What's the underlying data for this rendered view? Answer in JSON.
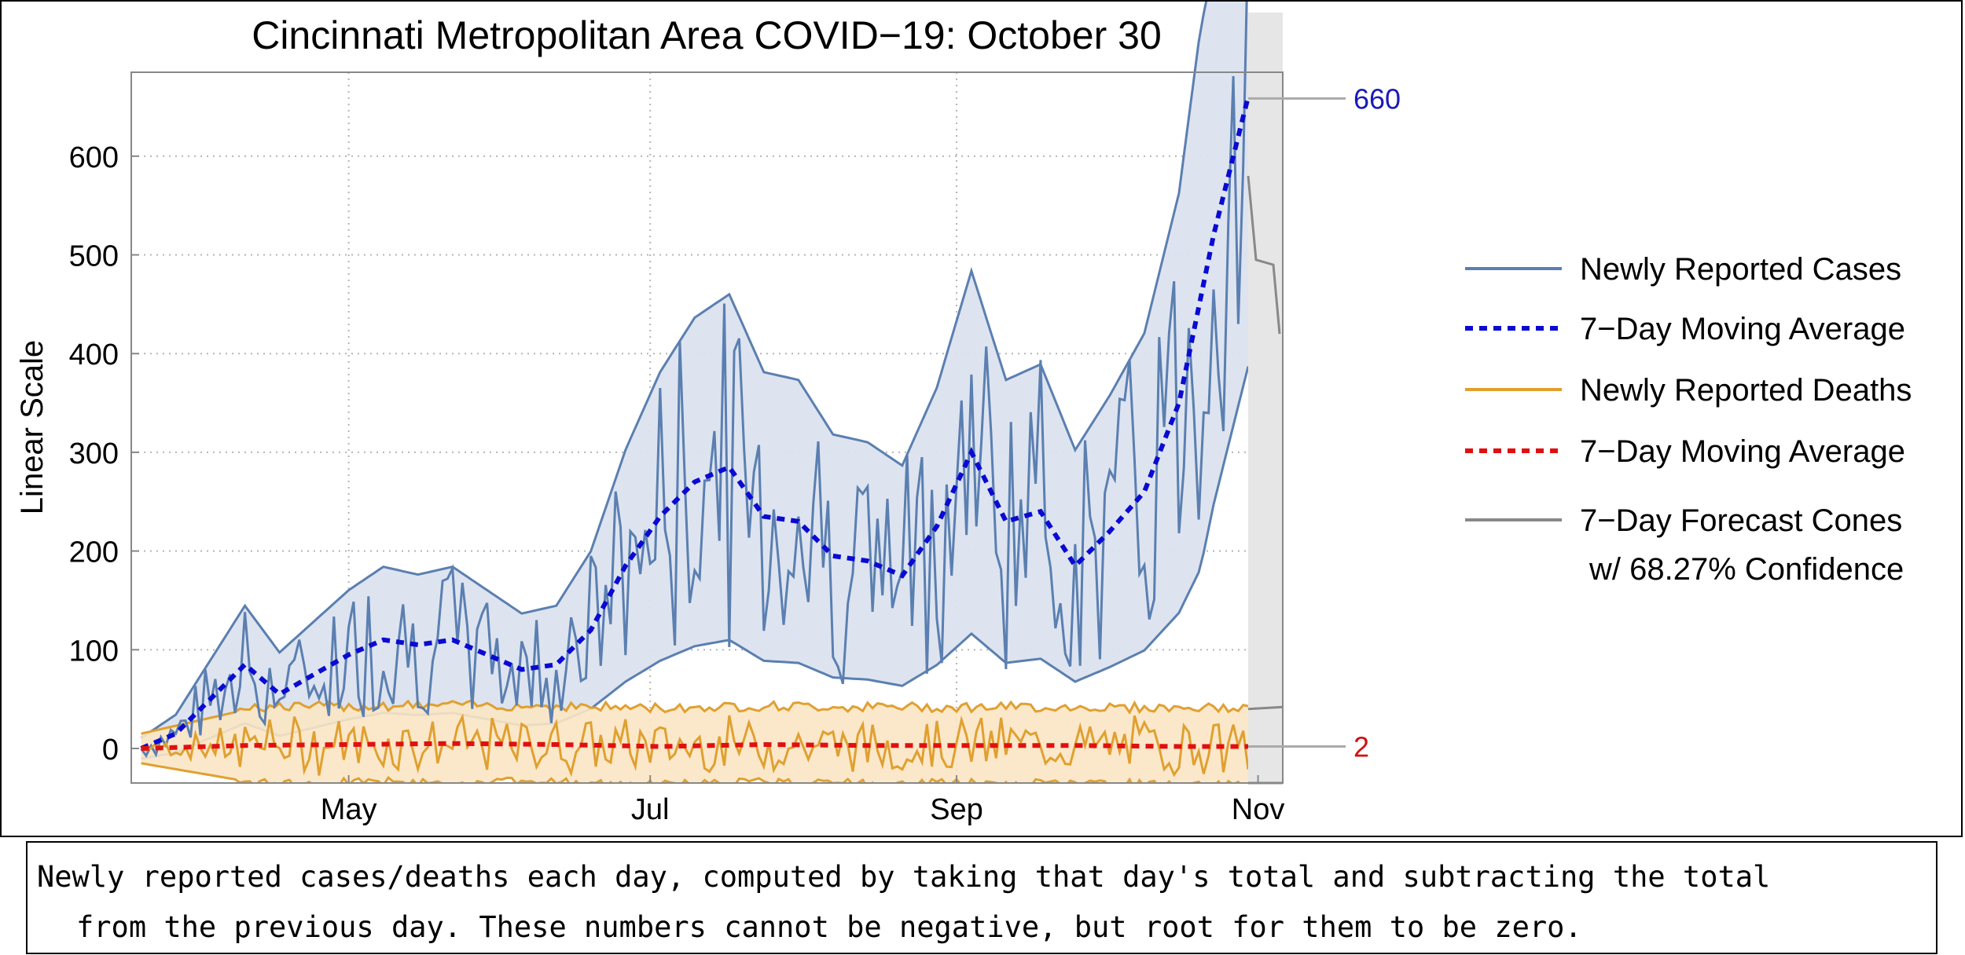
{
  "chart_data": {
    "type": "line",
    "title": "Cincinnati Metropolitan Area COVID−19: October 30",
    "ylabel": "Linear Scale",
    "xlabel": "",
    "ylim": [
      -35,
      685
    ],
    "xlim": [
      "2020-03-18",
      "2020-11-06"
    ],
    "grid": true,
    "legend_position": "right",
    "yticks": [
      0,
      100,
      200,
      300,
      400,
      500,
      600
    ],
    "yticklabels": [
      "0",
      "100",
      "200",
      "300",
      "400",
      "500",
      "600"
    ],
    "xticks": [
      "2020-05-01",
      "2020-07-01",
      "2020-09-01",
      "2020-11-01"
    ],
    "xticklabels": [
      "May",
      "Jul",
      "Sep",
      "Nov"
    ],
    "forecast_start": "2020-10-30",
    "annotations": [
      {
        "text": "660",
        "value": 660,
        "color": "#1a1ab8"
      },
      {
        "text": "2",
        "value": 2,
        "color": "#d01010"
      }
    ],
    "legend": [
      "Newly Reported Cases",
      "7−Day Moving Average",
      "Newly Reported Deaths",
      "7−Day Moving Average",
      "7−Day Forecast Cones",
      "w/ 68.27% Confidence"
    ],
    "colors": {
      "cases": "#5b7fb0",
      "cases_band": "#dbe3ef",
      "cases_avg": "#0a0ad2",
      "deaths": "#e0a030",
      "deaths_band": "#fbe6c4",
      "deaths_avg": "#e01010",
      "forecast": "#888888",
      "forecast_bg": "#e6e6e6"
    },
    "series": [
      {
        "name": "7−Day Moving Average",
        "of": "Newly Reported Cases",
        "x": [
          "2020-03-20",
          "2020-03-27",
          "2020-04-03",
          "2020-04-10",
          "2020-04-17",
          "2020-04-24",
          "2020-05-01",
          "2020-05-08",
          "2020-05-15",
          "2020-05-22",
          "2020-05-29",
          "2020-06-05",
          "2020-06-12",
          "2020-06-19",
          "2020-06-26",
          "2020-07-03",
          "2020-07-10",
          "2020-07-17",
          "2020-07-24",
          "2020-07-31",
          "2020-08-07",
          "2020-08-14",
          "2020-08-21",
          "2020-08-28",
          "2020-09-04",
          "2020-09-11",
          "2020-09-18",
          "2020-09-25",
          "2020-10-02",
          "2020-10-09",
          "2020-10-16",
          "2020-10-23",
          "2020-10-30"
        ],
        "values": [
          0,
          15,
          50,
          85,
          55,
          75,
          95,
          110,
          105,
          110,
          95,
          80,
          85,
          120,
          185,
          235,
          270,
          285,
          235,
          230,
          195,
          190,
          175,
          225,
          300,
          230,
          240,
          185,
          220,
          260,
          350,
          520,
          660
        ]
      },
      {
        "name": "7−Day Moving Average",
        "of": "Newly Reported Deaths",
        "x": [
          "2020-03-20",
          "2020-04-10",
          "2020-05-01",
          "2020-05-22",
          "2020-06-12",
          "2020-07-03",
          "2020-07-24",
          "2020-08-14",
          "2020-09-04",
          "2020-09-25",
          "2020-10-16",
          "2020-10-30"
        ],
        "values": [
          0,
          3,
          4,
          5,
          4,
          2,
          4,
          3,
          3,
          3,
          2,
          2
        ]
      }
    ]
  },
  "caption": {
    "line1": "Newly reported cases/deaths each day, computed by taking that day's total and subtracting the total",
    "line2": "from the previous day. These numbers cannot be negative, but root for them to be zero."
  }
}
